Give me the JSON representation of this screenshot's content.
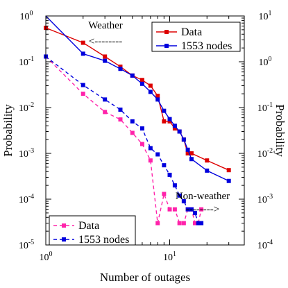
{
  "chart_data": {
    "type": "line",
    "xlabel": "Number of outages",
    "ylabel_left": "Probability",
    "ylabel_right": "Probability",
    "x_scale": "log",
    "y_scale": "log",
    "xlim": [
      1,
      40
    ],
    "ylim_left": [
      1e-05,
      1
    ],
    "ylim_right": [
      0.0001,
      10
    ],
    "x_ticks": [
      {
        "value": 1,
        "base": "10",
        "exp": "0"
      },
      {
        "value": 10,
        "base": "10",
        "exp": "1"
      }
    ],
    "y_ticks_left": [
      {
        "value": 1,
        "base": "10",
        "exp": "0"
      },
      {
        "value": 0.1,
        "base": "10",
        "exp": "-1"
      },
      {
        "value": 0.01,
        "base": "10",
        "exp": "-2"
      },
      {
        "value": 0.001,
        "base": "10",
        "exp": "-3"
      },
      {
        "value": 0.0001,
        "base": "10",
        "exp": "-4"
      },
      {
        "value": 1e-05,
        "base": "10",
        "exp": "-5"
      }
    ],
    "y_ticks_right": [
      {
        "value": 10,
        "base": "10",
        "exp": "1"
      },
      {
        "value": 1,
        "base": "10",
        "exp": "0"
      },
      {
        "value": 0.1,
        "base": "10",
        "exp": "-1"
      },
      {
        "value": 0.01,
        "base": "10",
        "exp": "-2"
      },
      {
        "value": 0.001,
        "base": "10",
        "exp": "-3"
      },
      {
        "value": 0.0001,
        "base": "10",
        "exp": "-4"
      }
    ],
    "groups": [
      {
        "group": "weather",
        "axis": "right",
        "annotation": "Weather",
        "annotation_arrow": "<--------",
        "legend_position": "top-right",
        "series": [
          {
            "name": "Data",
            "color": "#dd0000",
            "style": "solid",
            "x": [
              1,
              2,
              3,
              4,
              5,
              6,
              7,
              8,
              9,
              10,
              11,
              12,
              13,
              14,
              15,
              20,
              30
            ],
            "y": [
              5.5,
              2.6,
              1.3,
              0.78,
              0.5,
              0.4,
              0.3,
              0.18,
              0.05,
              0.05,
              0.035,
              0.03,
              0.02,
              0.01,
              0.01,
              0.007,
              0.0043
            ]
          },
          {
            "name": "1553 nodes",
            "color": "#0000dd",
            "style": "solid",
            "x": [
              1,
              2,
              3,
              4,
              5,
              6,
              7,
              8,
              9,
              10,
              11,
              12,
              13,
              14,
              15,
              20,
              30
            ],
            "y": [
              10,
              1.5,
              1.05,
              0.7,
              0.5,
              0.33,
              0.22,
              0.15,
              0.085,
              0.056,
              0.04,
              0.03,
              0.02,
              0.012,
              0.0075,
              0.0042,
              0.0025
            ]
          }
        ]
      },
      {
        "group": "non-weather",
        "axis": "left",
        "annotation": "Non-weather",
        "annotation_arrow": "-------->",
        "legend_position": "bottom-left",
        "series": [
          {
            "name": "Data",
            "color": "#ff22aa",
            "style": "dashed",
            "x": [
              1,
              2,
              3,
              4,
              5,
              6,
              7,
              8,
              9,
              10,
              11,
              12,
              13,
              14,
              15,
              16,
              17,
              18
            ],
            "y": [
              0.13,
              0.02,
              0.008,
              0.0055,
              0.0028,
              0.0016,
              0.0007,
              3e-05,
              0.00013,
              6e-05,
              6e-05,
              3e-05,
              3e-05,
              6e-05,
              6e-05,
              3e-05,
              3e-05,
              6e-05
            ]
          },
          {
            "name": "1553 nodes",
            "color": "#0000dd",
            "style": "dashed",
            "x": [
              1,
              2,
              3,
              4,
              5,
              6,
              7,
              8,
              9,
              10,
              11,
              12,
              13,
              14,
              15,
              16,
              17,
              18
            ],
            "y": [
              0.13,
              0.031,
              0.015,
              0.009,
              0.005,
              0.0035,
              0.0013,
              0.00095,
              0.00055,
              0.00034,
              0.0002,
              0.00012,
              9e-05,
              6e-05,
              6e-05,
              5e-05,
              3e-05,
              3e-05
            ]
          }
        ]
      }
    ]
  }
}
